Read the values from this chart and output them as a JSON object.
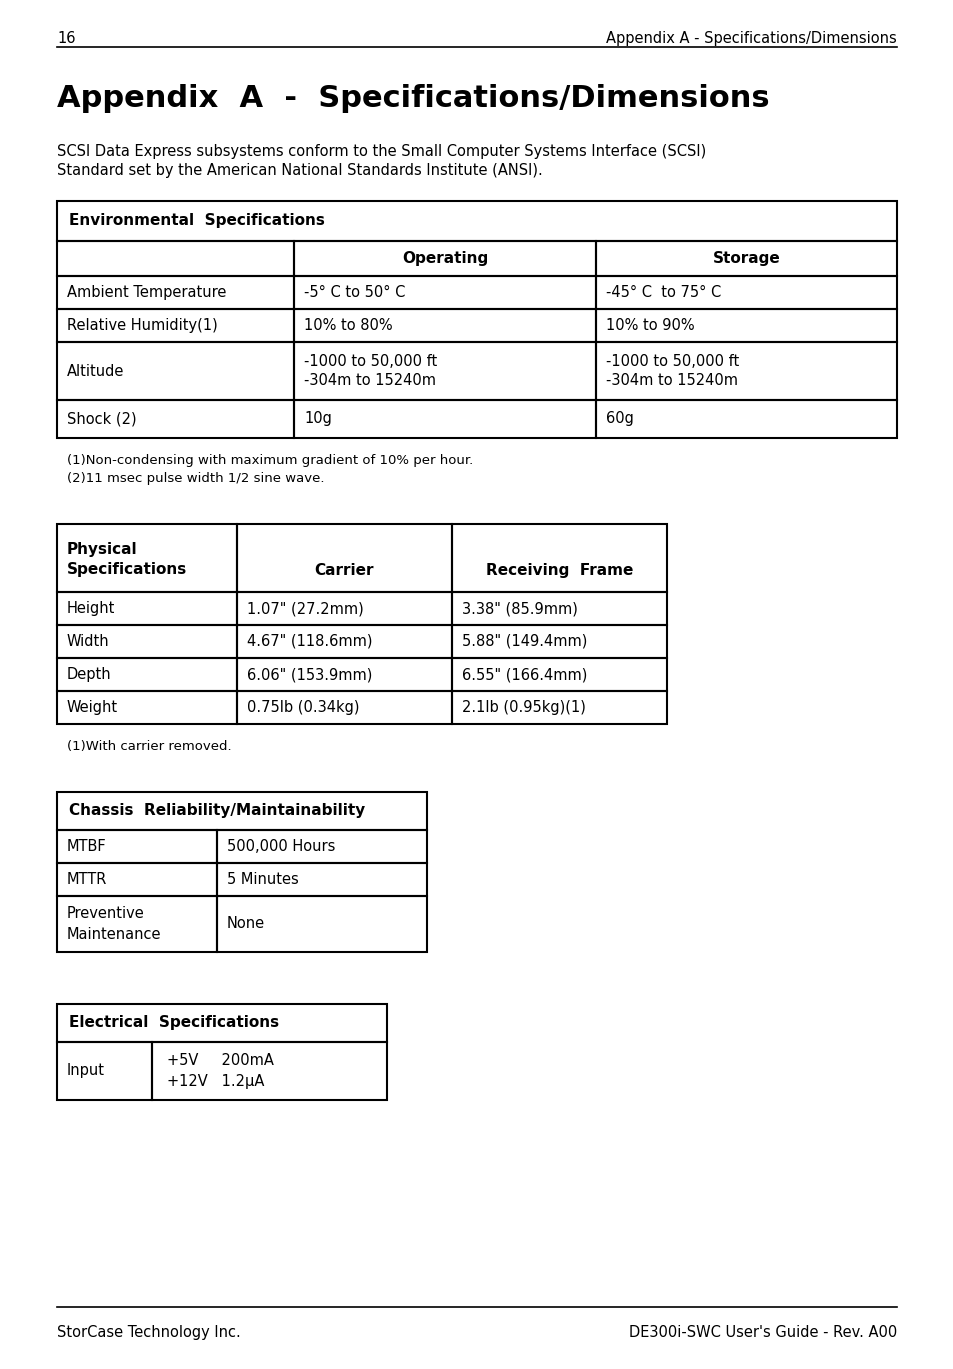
{
  "page_number": "16",
  "header_right": "Appendix A - Specifications/Dimensions",
  "title": "Appendix  A  -  Specifications/Dimensions",
  "intro_line1": "SCSI Data Express subsystems conform to the Small Computer Systems Interface (SCSI)",
  "intro_line2": "Standard set by the American National Standards Institute (ANSI).",
  "env_table_header": "Environmental  Specifications",
  "env_col1": "Operating",
  "env_col2": "Storage",
  "env_rows": [
    [
      "Ambient Temperature",
      "-5° C to 50° C",
      "-45° C  to 75° C"
    ],
    [
      "Relative Humidity(1)",
      "10% to 80%",
      "10% to 90%"
    ],
    [
      "Altitude",
      "-1000 to 50,000 ft\n-304m to 15240m",
      "-1000 to 50,000 ft\n-304m to 15240m"
    ],
    [
      "Shock (2)",
      "10g",
      "60g"
    ]
  ],
  "env_fn1": "(1)Non-condensing with maximum gradient of 10% per hour.",
  "env_fn2": "(2)11 msec pulse width 1/2 sine wave.",
  "phys_col0a": "Physical",
  "phys_col0b": "Specifications",
  "phys_col1": "Carrier",
  "phys_col2": "Receiving  Frame",
  "phys_rows": [
    [
      "Height",
      "1.07\" (27.2mm)",
      "3.38\" (85.9mm)"
    ],
    [
      "Width",
      "4.67\" (118.6mm)",
      "5.88\" (149.4mm)"
    ],
    [
      "Depth",
      "6.06\" (153.9mm)",
      "6.55\" (166.4mm)"
    ],
    [
      "Weight",
      "0.75lb (0.34kg)",
      "2.1lb (0.95kg)(1)"
    ]
  ],
  "phys_footnote": "(1)With carrier removed.",
  "chassis_table_header": "Chassis  Reliability/Maintainability",
  "chassis_rows": [
    [
      "MTBF",
      "500,000 Hours"
    ],
    [
      "MTTR",
      "5 Minutes"
    ],
    [
      "Preventive\nMaintenance",
      "None"
    ]
  ],
  "elec_table_header": "Electrical  Specifications",
  "elec_input_label": "Input",
  "elec_line1": "+5V     200mA",
  "elec_line2": "+12V   1.2μA",
  "footer_left": "StorCase Technology Inc.",
  "footer_right": "DE300i-SWC User's Guide - Rev. A00",
  "bg_color": "#ffffff",
  "text_color": "#000000"
}
